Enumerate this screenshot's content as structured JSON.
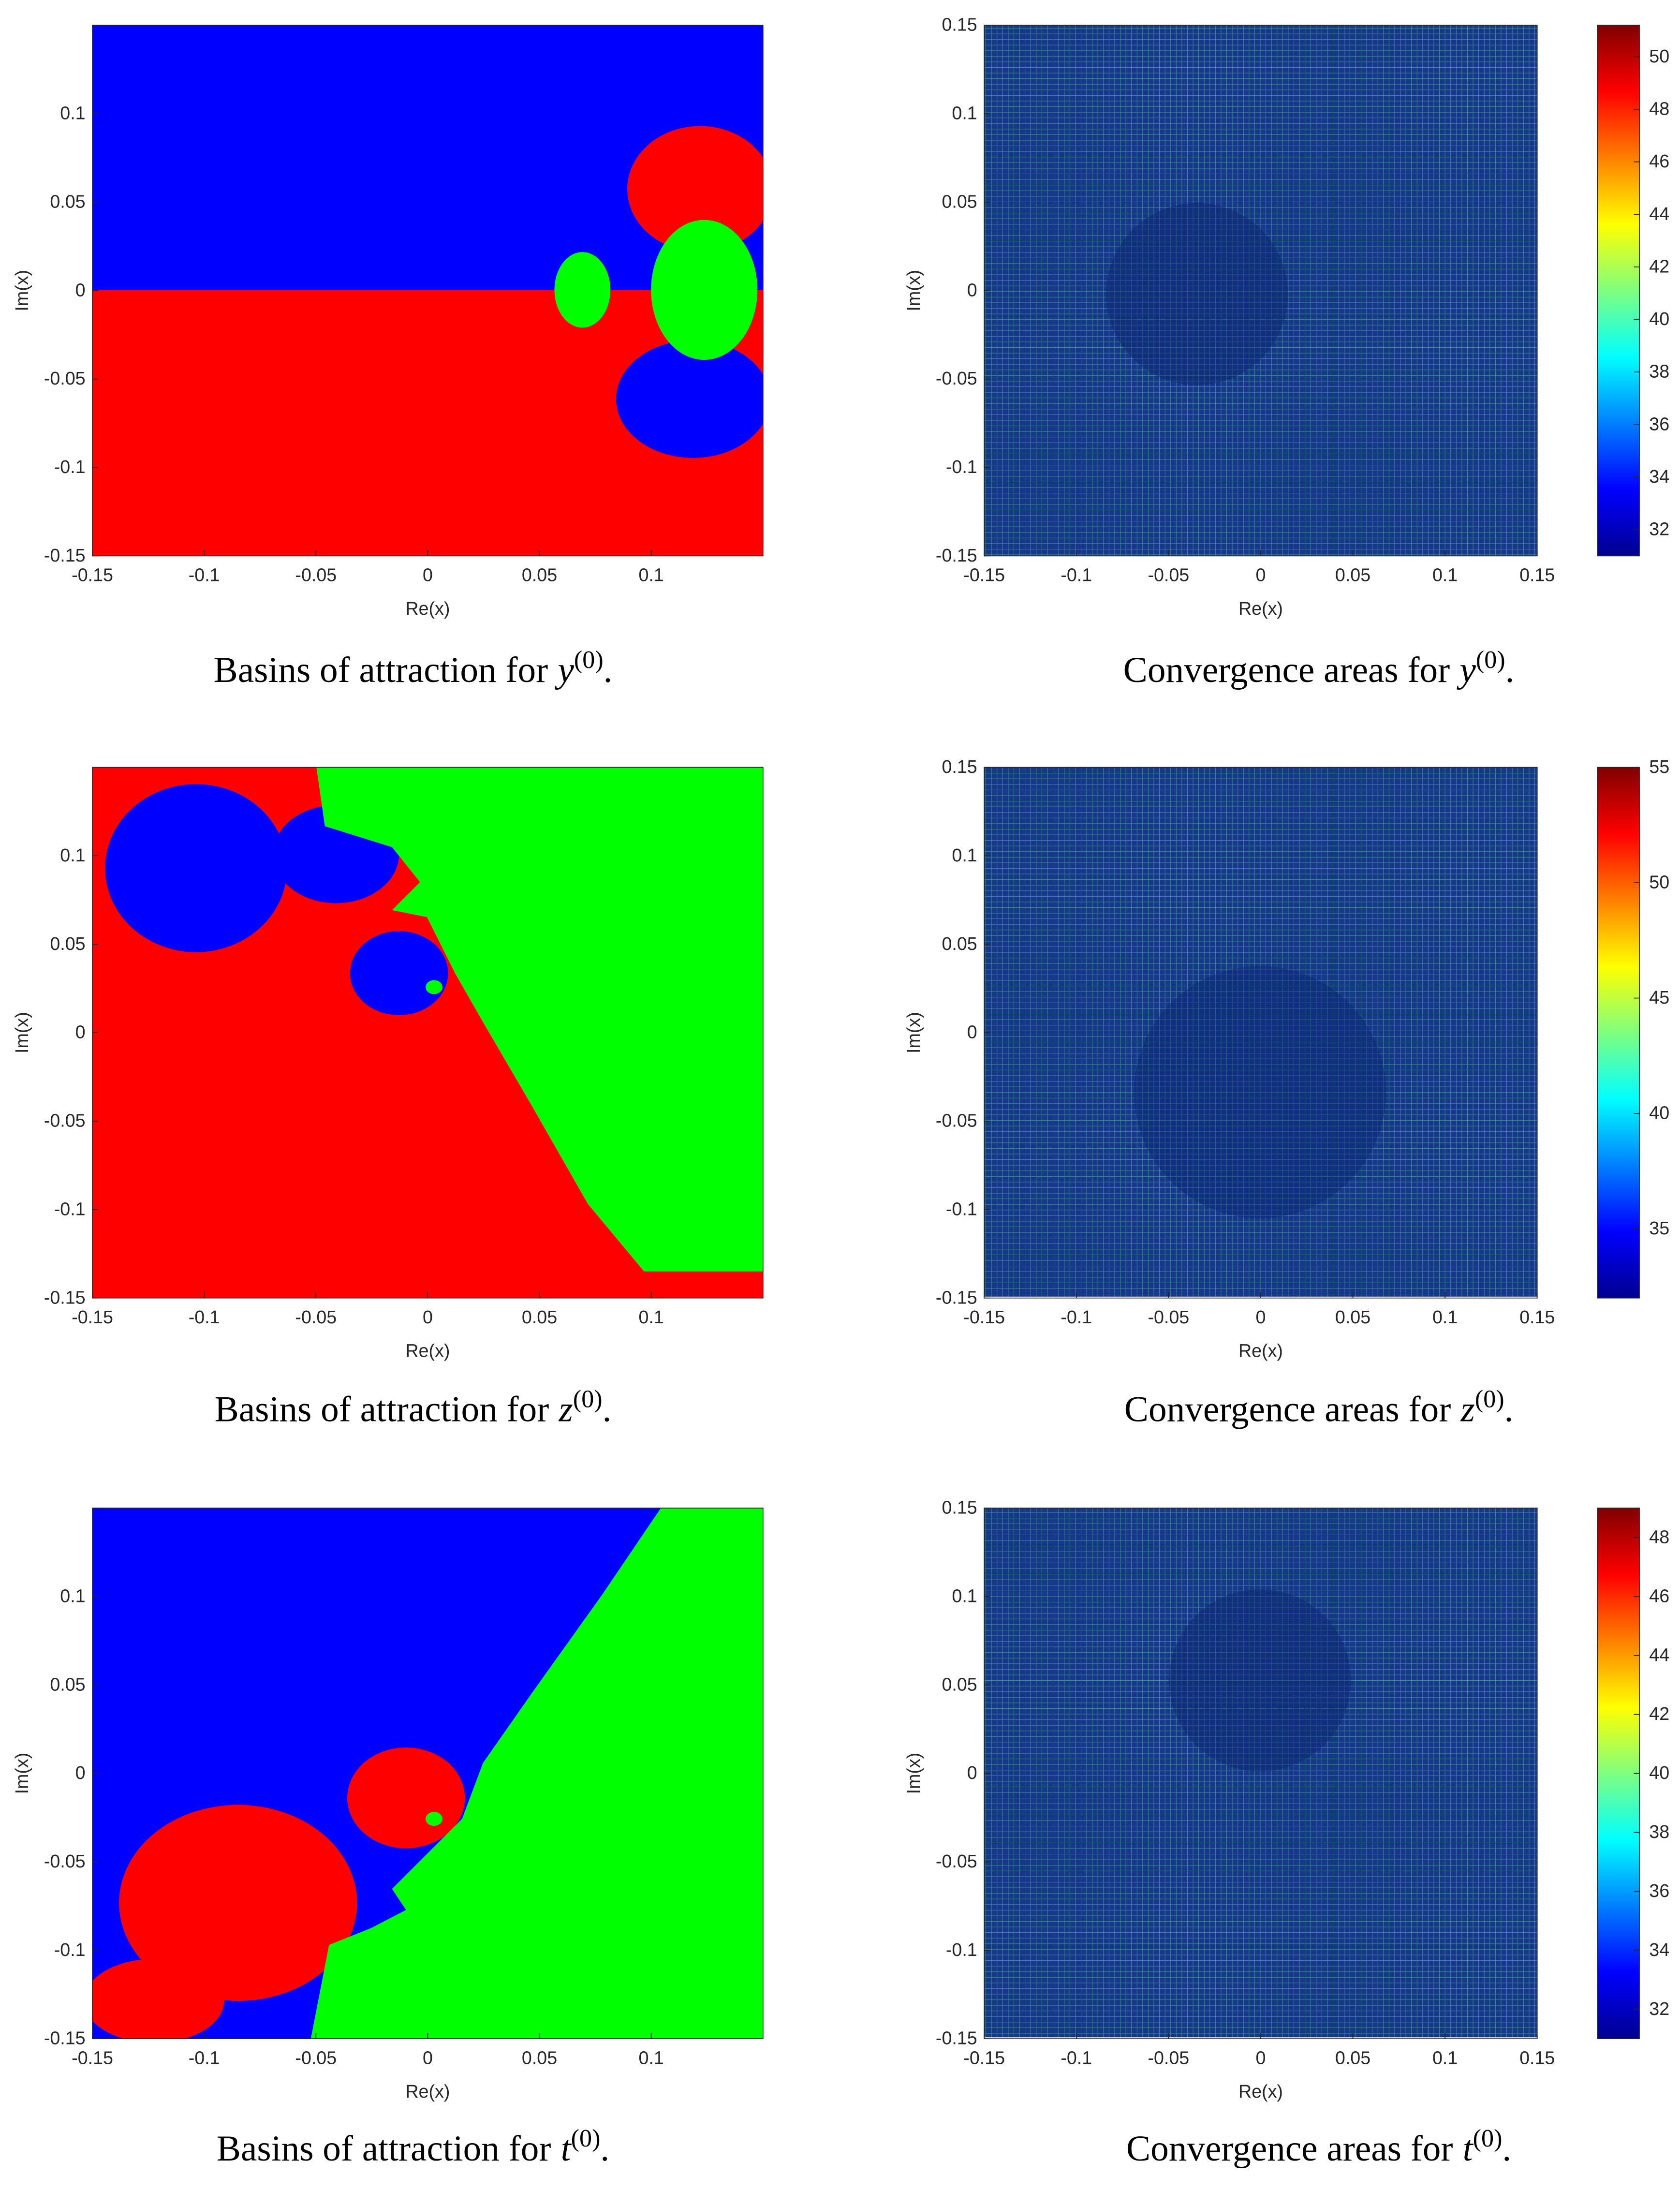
{
  "rows": [
    {
      "basins": {
        "xlabel": "Re(x)",
        "ylabel": "Im(x)",
        "xlim": [
          -0.15,
          0.15
        ],
        "ylim": [
          -0.15,
          0.15
        ],
        "xticks": [
          -0.15,
          -0.1,
          -0.05,
          0,
          0.05,
          0.1
        ],
        "yticks": [
          -0.15,
          -0.1,
          -0.05,
          0,
          0.05,
          0.1
        ],
        "caption": {
          "prefix": "Basins of attraction for",
          "var": "y",
          "sup": "(0)",
          "suffix": "."
        }
      },
      "convergence": {
        "xlabel": "Re(x)",
        "ylabel": "Im(x)",
        "xlim": [
          -0.15,
          0.15
        ],
        "ylim": [
          -0.15,
          0.15
        ],
        "xticks": [
          -0.15,
          -0.1,
          -0.05,
          0,
          0.05,
          0.1,
          0.15
        ],
        "yticks": [
          -0.15,
          -0.1,
          -0.05,
          0,
          0.05,
          0.1,
          0.15
        ],
        "colorbar": {
          "lim": [
            31,
            51.2
          ],
          "ticks": [
            32,
            34,
            36,
            38,
            40,
            42,
            44,
            46,
            48,
            50
          ]
        },
        "caption": {
          "prefix": "Convergence areas for",
          "var": "y",
          "sup": "(0)",
          "suffix": "."
        }
      }
    },
    {
      "basins": {
        "xlabel": "Re(x)",
        "ylabel": "Im(x)",
        "xlim": [
          -0.15,
          0.15
        ],
        "ylim": [
          -0.15,
          0.15
        ],
        "xticks": [
          -0.15,
          -0.1,
          -0.05,
          0,
          0.05,
          0.1
        ],
        "yticks": [
          -0.15,
          -0.1,
          -0.05,
          0,
          0.05,
          0.1
        ],
        "caption": {
          "prefix": "Basins of attraction for",
          "var": "z",
          "sup": "(0)",
          "suffix": "."
        }
      },
      "convergence": {
        "xlabel": "Re(x)",
        "ylabel": "Im(x)",
        "xlim": [
          -0.15,
          0.15
        ],
        "ylim": [
          -0.15,
          0.15
        ],
        "xticks": [
          -0.15,
          -0.1,
          -0.05,
          0,
          0.05,
          0.1,
          0.15
        ],
        "yticks": [
          -0.15,
          -0.1,
          -0.05,
          0,
          0.05,
          0.1,
          0.15
        ],
        "colorbar": {
          "lim": [
            32,
            55
          ],
          "ticks": [
            35,
            40,
            45,
            50,
            55
          ]
        },
        "caption": {
          "prefix": "Convergence areas for",
          "var": "z",
          "sup": "(0)",
          "suffix": "."
        }
      }
    },
    {
      "basins": {
        "xlabel": "Re(x)",
        "ylabel": "Im(x)",
        "xlim": [
          -0.15,
          0.15
        ],
        "ylim": [
          -0.15,
          0.15
        ],
        "xticks": [
          -0.15,
          -0.1,
          -0.05,
          0,
          0.05,
          0.1
        ],
        "yticks": [
          -0.15,
          -0.1,
          -0.05,
          0,
          0.05,
          0.1
        ],
        "caption": {
          "prefix": "Basins of attraction for",
          "var": "t",
          "sup": "(0)",
          "suffix": "."
        }
      },
      "convergence": {
        "xlabel": "Re(x)",
        "ylabel": "Im(x)",
        "xlim": [
          -0.15,
          0.15
        ],
        "ylim": [
          -0.15,
          0.15
        ],
        "xticks": [
          -0.15,
          -0.1,
          -0.05,
          0,
          0.05,
          0.1,
          0.15
        ],
        "yticks": [
          -0.15,
          -0.1,
          -0.05,
          0,
          0.05,
          0.1,
          0.15
        ],
        "colorbar": {
          "lim": [
            31,
            49
          ],
          "ticks": [
            32,
            34,
            36,
            38,
            40,
            42,
            44,
            46,
            48
          ]
        },
        "caption": {
          "prefix": "Convergence areas for",
          "var": "t",
          "sup": "(0)",
          "suffix": "."
        }
      }
    }
  ]
}
